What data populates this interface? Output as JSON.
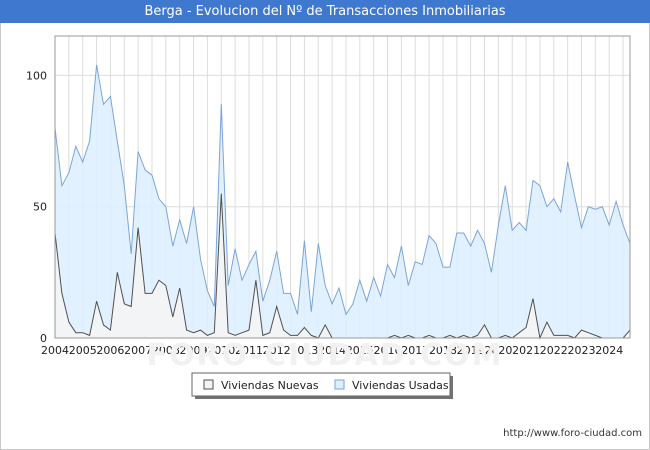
{
  "title": "Berga - Evolucion del Nº de Transacciones Inmobiliarias",
  "watermark": "FORO-CIUDAD.COM",
  "credit": "http://www.foro-ciudad.com",
  "colors": {
    "title_bg": "#3e79cf",
    "nuevas_line": "#505050",
    "nuevas_fill": "#f4f4f4",
    "usadas_line": "#7aa5d8",
    "usadas_fill": "#ddeeff"
  },
  "chart_data": {
    "type": "area",
    "x_start": 2004,
    "x_end": 2024.75,
    "step": 0.25,
    "xlim": [
      2004,
      2024.75
    ],
    "ylim": [
      0,
      115
    ],
    "y_ticks": [
      0,
      50,
      100
    ],
    "x_ticks": [
      2004,
      2005,
      2006,
      2007,
      2008,
      2009,
      2010,
      2011,
      2012,
      2013,
      2014,
      2015,
      2016,
      2017,
      2018,
      2019,
      2020,
      2021,
      2022,
      2023,
      2024
    ],
    "grid": true,
    "legend_position": "bottom-center",
    "series": [
      {
        "name": "Viviendas Nuevas",
        "values": [
          40,
          17,
          6,
          2,
          2,
          1,
          14,
          5,
          3,
          25,
          13,
          12,
          42,
          17,
          17,
          22,
          20,
          8,
          19,
          3,
          2,
          3,
          1,
          2,
          55,
          2,
          1,
          2,
          3,
          22,
          1,
          2,
          12,
          3,
          1,
          1,
          4,
          1,
          0,
          5,
          0,
          0,
          0,
          0,
          0,
          0,
          0,
          0,
          0,
          1,
          0,
          1,
          0,
          0,
          1,
          0,
          0,
          1,
          0,
          1,
          0,
          1,
          5,
          0,
          0,
          1,
          0,
          2,
          4,
          15,
          0,
          6,
          1,
          1,
          1,
          0,
          3,
          2,
          1,
          0,
          0,
          0,
          0,
          3
        ]
      },
      {
        "name": "Viviendas Usadas",
        "values": [
          80,
          58,
          63,
          73,
          67,
          75,
          104,
          89,
          92,
          75,
          58,
          32,
          71,
          64,
          62,
          53,
          50,
          35,
          45,
          36,
          50,
          30,
          18,
          12,
          89,
          20,
          34,
          22,
          28,
          33,
          14,
          22,
          33,
          17,
          17,
          9,
          37,
          10,
          36,
          20,
          13,
          19,
          9,
          13,
          22,
          14,
          23,
          16,
          28,
          23,
          35,
          20,
          29,
          28,
          39,
          36,
          27,
          27,
          40,
          40,
          35,
          41,
          36,
          25,
          43,
          58,
          41,
          44,
          41,
          60,
          58,
          50,
          53,
          48,
          67,
          54,
          42,
          50,
          49,
          50,
          43,
          52,
          43,
          36
        ]
      }
    ]
  }
}
